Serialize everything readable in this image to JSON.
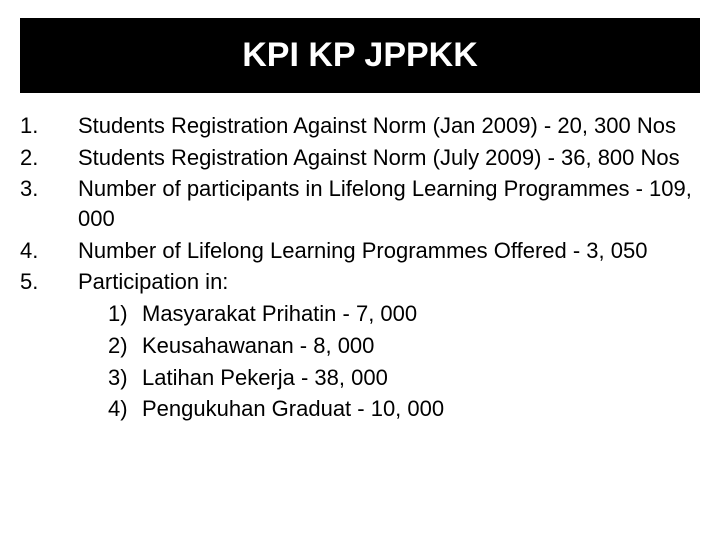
{
  "title": "KPI KP JPPKK",
  "title_bg": "#000000",
  "title_color": "#ffffff",
  "title_fontsize": 34,
  "body_fontsize": 22,
  "body_color": "#000000",
  "page_bg": "#ffffff",
  "items": [
    {
      "n": "1.",
      "text": "Students Registration Against Norm (Jan 2009) - 20, 300 Nos"
    },
    {
      "n": "2.",
      "text": "Students Registration Against Norm (July 2009) - 36, 800 Nos"
    },
    {
      "n": "3.",
      "text": "Number of participants in Lifelong Learning Programmes  - 109, 000"
    },
    {
      "n": "4.",
      "text": "Number of Lifelong Learning Programmes Offered - 3, 050"
    },
    {
      "n": "5.",
      "text": "Participation in:"
    }
  ],
  "subitems": [
    {
      "n": "1)",
      "text": "Masyarakat Prihatin - 7, 000"
    },
    {
      "n": "2)",
      "text": "Keusahawanan - 8, 000"
    },
    {
      "n": "3)",
      "text": "Latihan Pekerja - 38, 000"
    },
    {
      "n": "4)",
      "text": "Pengukuhan Graduat - 10, 000"
    }
  ]
}
